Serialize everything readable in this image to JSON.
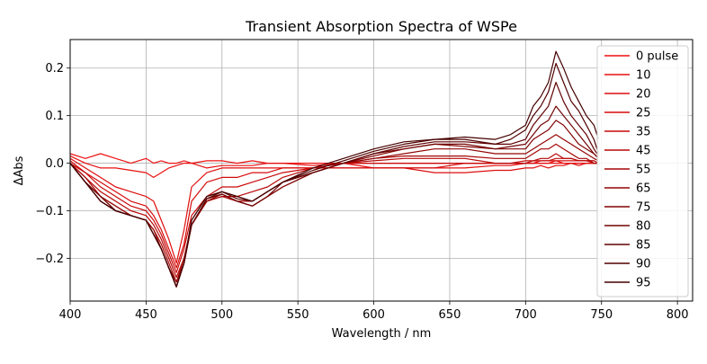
{
  "chart_data": {
    "type": "line",
    "title": "Transient Absorption Spectra of WSPe",
    "xlabel": "Wavelength / nm",
    "ylabel": "ΔAbs",
    "xlim": [
      400,
      810
    ],
    "ylim": [
      -0.29,
      0.26
    ],
    "xticks": [
      400,
      450,
      500,
      550,
      600,
      650,
      700,
      750,
      800
    ],
    "yticks": [
      -0.2,
      -0.1,
      0.0,
      0.1,
      0.2
    ],
    "xtick_labels": [
      "400",
      "450",
      "500",
      "550",
      "600",
      "650",
      "700",
      "750",
      "800"
    ],
    "ytick_labels": [
      "−0.2",
      "−0.1",
      "0.0",
      "0.1",
      "0.2"
    ],
    "grid": true,
    "legend_position": "top-right",
    "x": [
      400,
      410,
      420,
      430,
      440,
      450,
      455,
      460,
      465,
      470,
      475,
      480,
      490,
      500,
      510,
      520,
      530,
      540,
      560,
      580,
      600,
      620,
      640,
      660,
      680,
      690,
      700,
      705,
      710,
      715,
      720,
      725,
      730,
      735,
      740,
      745,
      748
    ],
    "series": [
      {
        "name": "0 pulse",
        "color": "#ee1111",
        "values": [
          0.02,
          0.01,
          0.02,
          0.01,
          0.0,
          0.01,
          0.0,
          0.005,
          0.0,
          0.0,
          0.005,
          0.0,
          0.005,
          0.005,
          0.0,
          0.005,
          0.0,
          0.0,
          0.0,
          0.0,
          0.0,
          0.0,
          0.0,
          0.0,
          0.0,
          0.0,
          0.0,
          0.0,
          0.0,
          0.0,
          0.0,
          0.0,
          0.0,
          0.0,
          0.0,
          0.0,
          0.0
        ]
      },
      {
        "name": "10",
        "color": "#e81010",
        "values": [
          0.015,
          0.0,
          -0.01,
          -0.01,
          -0.015,
          -0.02,
          -0.03,
          -0.02,
          -0.01,
          -0.005,
          0.0,
          0.0,
          -0.01,
          -0.005,
          -0.005,
          -0.005,
          0.0,
          0.0,
          -0.005,
          0.0,
          -0.01,
          -0.01,
          -0.01,
          -0.01,
          -0.005,
          -0.005,
          0.0,
          0.0,
          0.0,
          0.0,
          0.005,
          0.0,
          0.0,
          0.0,
          0.0,
          0.0,
          0.0
        ]
      },
      {
        "name": "20",
        "color": "#df0e0e",
        "values": [
          0.01,
          -0.01,
          -0.03,
          -0.05,
          -0.06,
          -0.07,
          -0.08,
          -0.12,
          -0.16,
          -0.21,
          -0.14,
          -0.05,
          -0.02,
          -0.01,
          -0.01,
          -0.01,
          -0.01,
          -0.01,
          -0.01,
          -0.01,
          -0.01,
          -0.01,
          -0.02,
          -0.02,
          -0.015,
          -0.015,
          -0.01,
          -0.01,
          -0.005,
          -0.01,
          -0.005,
          -0.005,
          0.0,
          -0.005,
          0.0,
          0.0,
          0.0
        ]
      },
      {
        "name": "25",
        "color": "#d50c0c",
        "values": [
          0.005,
          -0.02,
          -0.04,
          -0.06,
          -0.08,
          -0.09,
          -0.11,
          -0.14,
          -0.18,
          -0.22,
          -0.17,
          -0.08,
          -0.04,
          -0.03,
          -0.03,
          -0.02,
          -0.02,
          -0.01,
          -0.01,
          -0.01,
          -0.01,
          -0.01,
          -0.01,
          0.0,
          0.0,
          0.0,
          0.0,
          0.0,
          0.005,
          0.005,
          0.005,
          0.005,
          0.005,
          0.005,
          0.005,
          0.0,
          0.0
        ]
      },
      {
        "name": "35",
        "color": "#c80a0a",
        "values": [
          0.0,
          -0.02,
          -0.05,
          -0.07,
          -0.09,
          -0.1,
          -0.12,
          -0.15,
          -0.19,
          -0.23,
          -0.18,
          -0.11,
          -0.07,
          -0.05,
          -0.05,
          -0.04,
          -0.03,
          -0.02,
          -0.01,
          0.0,
          0.0,
          0.0,
          0.0,
          0.0,
          0.0,
          0.0,
          0.005,
          0.005,
          0.005,
          0.005,
          0.01,
          0.01,
          0.01,
          0.005,
          0.005,
          0.005,
          0.0
        ]
      },
      {
        "name": "45",
        "color": "#b80808",
        "values": [
          0.0,
          -0.03,
          -0.06,
          -0.08,
          -0.1,
          -0.11,
          -0.13,
          -0.16,
          -0.2,
          -0.24,
          -0.2,
          -0.13,
          -0.08,
          -0.07,
          -0.07,
          -0.06,
          -0.05,
          -0.03,
          -0.01,
          0.0,
          0.005,
          0.01,
          0.01,
          0.01,
          0.0,
          0.0,
          0.0,
          0.005,
          0.01,
          0.01,
          0.02,
          0.01,
          0.01,
          0.005,
          0.005,
          0.005,
          0.0
        ]
      },
      {
        "name": "55",
        "color": "#a60606",
        "values": [
          0.0,
          -0.03,
          -0.07,
          -0.09,
          -0.11,
          -0.12,
          -0.14,
          -0.17,
          -0.21,
          -0.25,
          -0.2,
          -0.13,
          -0.08,
          -0.07,
          -0.08,
          -0.08,
          -0.06,
          -0.04,
          -0.02,
          0.0,
          0.01,
          0.015,
          0.015,
          0.015,
          0.01,
          0.01,
          0.01,
          0.02,
          0.03,
          0.03,
          0.04,
          0.03,
          0.02,
          0.01,
          0.01,
          0.0,
          0.0
        ]
      },
      {
        "name": "65",
        "color": "#940505",
        "values": [
          0.0,
          -0.04,
          -0.07,
          -0.09,
          -0.11,
          -0.12,
          -0.14,
          -0.18,
          -0.22,
          -0.25,
          -0.21,
          -0.13,
          -0.08,
          -0.065,
          -0.08,
          -0.09,
          -0.07,
          -0.05,
          -0.02,
          0.0,
          0.01,
          0.02,
          0.03,
          0.03,
          0.02,
          0.02,
          0.02,
          0.03,
          0.04,
          0.05,
          0.06,
          0.05,
          0.04,
          0.03,
          0.02,
          0.01,
          0.005
        ]
      },
      {
        "name": "75",
        "color": "#820404",
        "values": [
          0.0,
          -0.04,
          -0.07,
          -0.1,
          -0.11,
          -0.12,
          -0.15,
          -0.18,
          -0.22,
          -0.26,
          -0.21,
          -0.13,
          -0.075,
          -0.065,
          -0.08,
          -0.09,
          -0.07,
          -0.05,
          -0.02,
          0.0,
          0.015,
          0.03,
          0.04,
          0.035,
          0.03,
          0.03,
          0.03,
          0.05,
          0.06,
          0.07,
          0.09,
          0.08,
          0.06,
          0.04,
          0.03,
          0.02,
          0.01
        ]
      },
      {
        "name": "80",
        "color": "#720303",
        "values": [
          0.0,
          -0.04,
          -0.07,
          -0.1,
          -0.11,
          -0.12,
          -0.15,
          -0.18,
          -0.22,
          -0.26,
          -0.21,
          -0.13,
          -0.075,
          -0.065,
          -0.08,
          -0.09,
          -0.07,
          -0.04,
          -0.02,
          0.0,
          0.02,
          0.03,
          0.04,
          0.04,
          0.03,
          0.035,
          0.04,
          0.06,
          0.08,
          0.09,
          0.12,
          0.1,
          0.08,
          0.06,
          0.04,
          0.02,
          0.01
        ]
      },
      {
        "name": "85",
        "color": "#620202",
        "values": [
          0.0,
          -0.04,
          -0.08,
          -0.1,
          -0.11,
          -0.12,
          -0.15,
          -0.18,
          -0.22,
          -0.26,
          -0.21,
          -0.13,
          -0.075,
          -0.06,
          -0.075,
          -0.08,
          -0.06,
          -0.04,
          -0.02,
          0.0,
          0.02,
          0.035,
          0.045,
          0.045,
          0.04,
          0.04,
          0.05,
          0.08,
          0.1,
          0.12,
          0.17,
          0.13,
          0.1,
          0.08,
          0.06,
          0.03,
          0.015
        ]
      },
      {
        "name": "90",
        "color": "#520101",
        "values": [
          0.0,
          -0.04,
          -0.08,
          -0.1,
          -0.11,
          -0.12,
          -0.15,
          -0.18,
          -0.22,
          -0.26,
          -0.21,
          -0.12,
          -0.07,
          -0.06,
          -0.07,
          -0.08,
          -0.06,
          -0.04,
          -0.015,
          0.005,
          0.025,
          0.04,
          0.05,
          0.05,
          0.04,
          0.05,
          0.07,
          0.1,
          0.12,
          0.15,
          0.21,
          0.17,
          0.13,
          0.11,
          0.08,
          0.05,
          0.02
        ]
      },
      {
        "name": "95",
        "color": "#440000",
        "values": [
          0.0,
          -0.04,
          -0.08,
          -0.1,
          -0.11,
          -0.12,
          -0.15,
          -0.18,
          -0.22,
          -0.26,
          -0.21,
          -0.12,
          -0.07,
          -0.06,
          -0.07,
          -0.08,
          -0.06,
          -0.04,
          -0.01,
          0.01,
          0.03,
          0.045,
          0.05,
          0.055,
          0.05,
          0.06,
          0.08,
          0.12,
          0.14,
          0.17,
          0.235,
          0.2,
          0.16,
          0.13,
          0.1,
          0.08,
          0.05
        ]
      }
    ]
  }
}
